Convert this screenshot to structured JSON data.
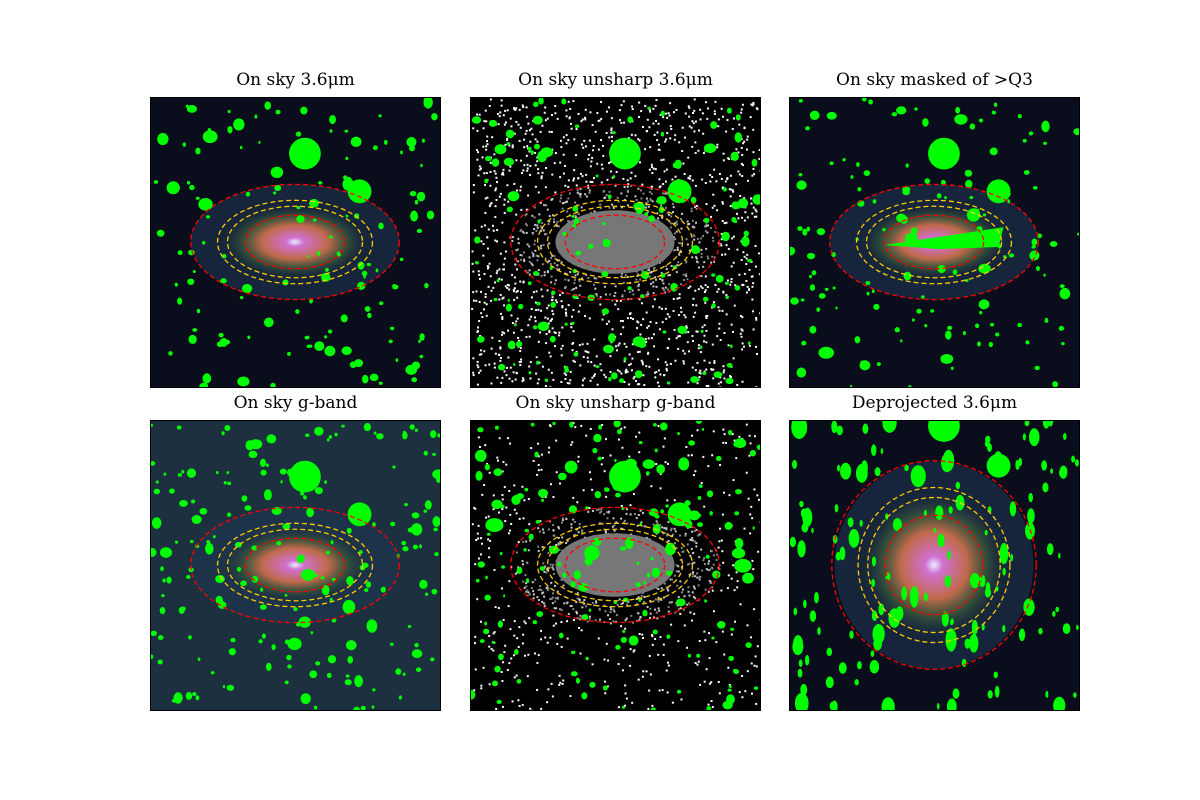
{
  "figure": {
    "panels": [
      {
        "title": "On sky 3.6μm",
        "style": "color",
        "deprojected": false
      },
      {
        "title": "On sky unsharp 3.6μm",
        "style": "unsharp",
        "deprojected": false
      },
      {
        "title": "On sky masked of >Q3",
        "style": "masked",
        "deprojected": false
      },
      {
        "title": "On sky g-band",
        "style": "color-teal",
        "deprojected": false
      },
      {
        "title": "On sky unsharp g-band",
        "style": "unsharp-sparse",
        "deprojected": false
      },
      {
        "title": "Deprojected 3.6μm",
        "style": "color",
        "deprojected": true
      }
    ],
    "colors": {
      "mask": "#00ff00",
      "outer_ellipse": "#ff0000",
      "inner_ellipse": "#ffcc00",
      "background": "#0a0d1c"
    }
  }
}
